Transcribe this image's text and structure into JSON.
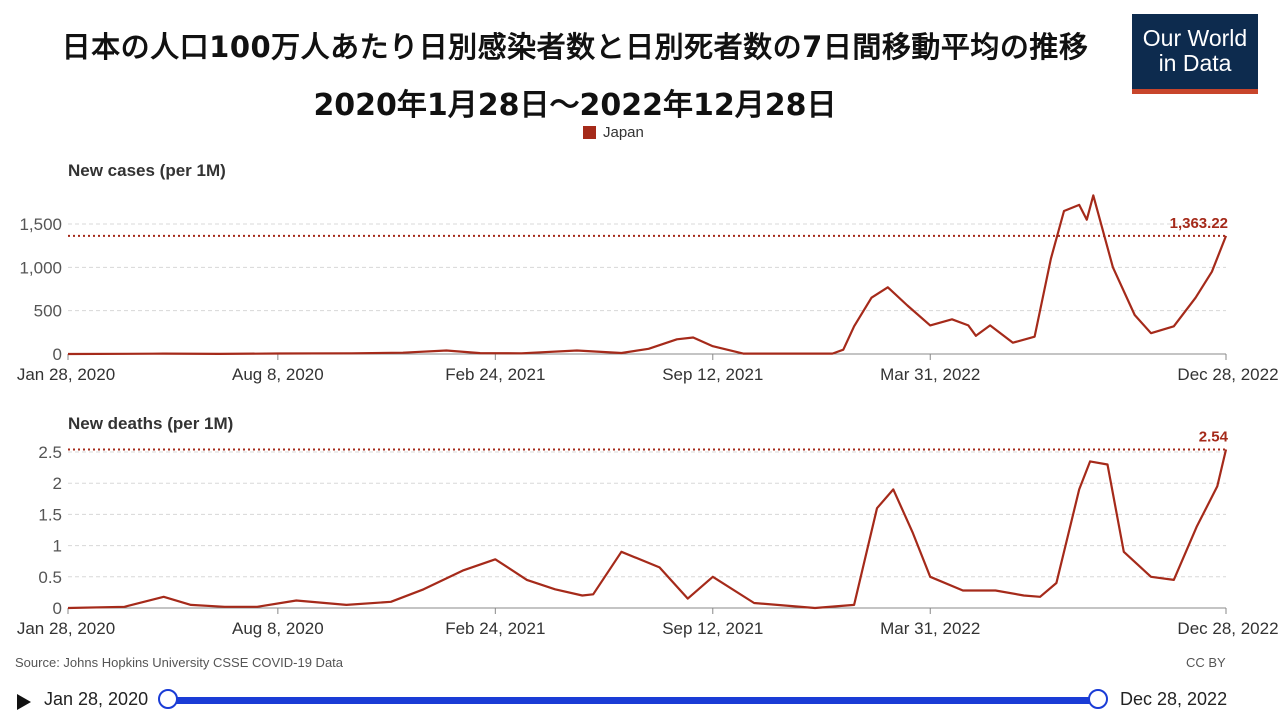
{
  "header": {
    "title_line1": "日本の人口100万人あたり日別感染者数と日別死者数の7日間移動平均の推移",
    "title_line2": "2020年1月28日～2022年12月28日",
    "logo_line1": "Our World",
    "logo_line2": "in Data"
  },
  "legend": {
    "label": "Japan",
    "color": "#a52a1a"
  },
  "footer": {
    "source": "Source: Johns Hopkins University CSSE COVID-19 Data",
    "license": "CC BY"
  },
  "timeline": {
    "start_label": "Jan 28, 2020",
    "end_label": "Dec 28, 2022",
    "start_position": 0,
    "end_position": 1
  },
  "chart_data": [
    {
      "type": "line",
      "title": "New cases (per 1M)",
      "x_ticks": [
        "Jan 28, 2020",
        "Aug 8, 2020",
        "Feb 24, 2021",
        "Sep 12, 2021",
        "Mar 31, 2022",
        "Dec 28, 2022"
      ],
      "y_ticks": [
        "0",
        "500",
        "1,000",
        "1,500"
      ],
      "ylim": [
        0,
        1850
      ],
      "last_value_label": "1,363.22",
      "last_value": 1363.22,
      "grid": true,
      "series": [
        {
          "color": "#a52a1a",
          "x": [
            "2020-01-28",
            "2020-04-15",
            "2020-04-25",
            "2020-06-15",
            "2020-08-08",
            "2020-10-15",
            "2020-12-01",
            "2021-01-10",
            "2021-02-10",
            "2021-03-20",
            "2021-05-10",
            "2021-06-20",
            "2021-07-15",
            "2021-08-10",
            "2021-08-25",
            "2021-09-12",
            "2021-10-10",
            "2021-12-31",
            "2022-01-10",
            "2022-01-20",
            "2022-02-05",
            "2022-02-20",
            "2022-03-10",
            "2022-03-31",
            "2022-04-20",
            "2022-05-05",
            "2022-05-12",
            "2022-05-25",
            "2022-06-15",
            "2022-07-05",
            "2022-07-20",
            "2022-08-01",
            "2022-08-15",
            "2022-08-22",
            "2022-08-28",
            "2022-09-15",
            "2022-10-05",
            "2022-10-20",
            "2022-11-10",
            "2022-11-30",
            "2022-12-15",
            "2022-12-28"
          ],
          "y": [
            0,
            4,
            5,
            1,
            6,
            8,
            15,
            40,
            10,
            8,
            40,
            12,
            60,
            170,
            190,
            90,
            5,
            5,
            50,
            320,
            650,
            770,
            560,
            330,
            400,
            330,
            210,
            330,
            130,
            200,
            1100,
            1650,
            1720,
            1550,
            1830,
            1000,
            450,
            240,
            320,
            650,
            950,
            1363.22
          ]
        }
      ]
    },
    {
      "type": "line",
      "title": "New deaths (per 1M)",
      "x_ticks": [
        "Jan 28, 2020",
        "Aug 8, 2020",
        "Feb 24, 2021",
        "Sep 12, 2021",
        "Mar 31, 2022",
        "Dec 28, 2022"
      ],
      "y_ticks": [
        "0",
        "0.5",
        "1",
        "1.5",
        "2",
        "2.5"
      ],
      "ylim": [
        0,
        2.6
      ],
      "last_value_label": "2.54",
      "last_value": 2.54,
      "grid": true,
      "series": [
        {
          "color": "#a52a1a",
          "x": [
            "2020-01-28",
            "2020-03-20",
            "2020-04-25",
            "2020-05-20",
            "2020-06-20",
            "2020-07-20",
            "2020-08-25",
            "2020-10-10",
            "2020-11-20",
            "2020-12-20",
            "2021-01-25",
            "2021-02-24",
            "2021-03-25",
            "2021-04-20",
            "2021-05-15",
            "2021-05-25",
            "2021-06-20",
            "2021-07-25",
            "2021-08-20",
            "2021-09-12",
            "2021-10-20",
            "2021-12-15",
            "2022-01-20",
            "2022-02-10",
            "2022-02-25",
            "2022-03-15",
            "2022-03-31",
            "2022-04-30",
            "2022-05-30",
            "2022-06-25",
            "2022-07-10",
            "2022-07-25",
            "2022-08-15",
            "2022-08-25",
            "2022-09-10",
            "2022-09-25",
            "2022-10-20",
            "2022-11-10",
            "2022-12-01",
            "2022-12-20",
            "2022-12-28"
          ],
          "y": [
            0,
            0.02,
            0.18,
            0.05,
            0.02,
            0.02,
            0.12,
            0.05,
            0.1,
            0.3,
            0.6,
            0.78,
            0.45,
            0.3,
            0.2,
            0.22,
            0.9,
            0.65,
            0.15,
            0.5,
            0.08,
            0,
            0.05,
            1.6,
            1.9,
            1.2,
            0.5,
            0.28,
            0.28,
            0.2,
            0.18,
            0.4,
            1.9,
            2.35,
            2.3,
            0.9,
            0.5,
            0.45,
            1.3,
            1.95,
            2.54
          ]
        }
      ]
    }
  ]
}
